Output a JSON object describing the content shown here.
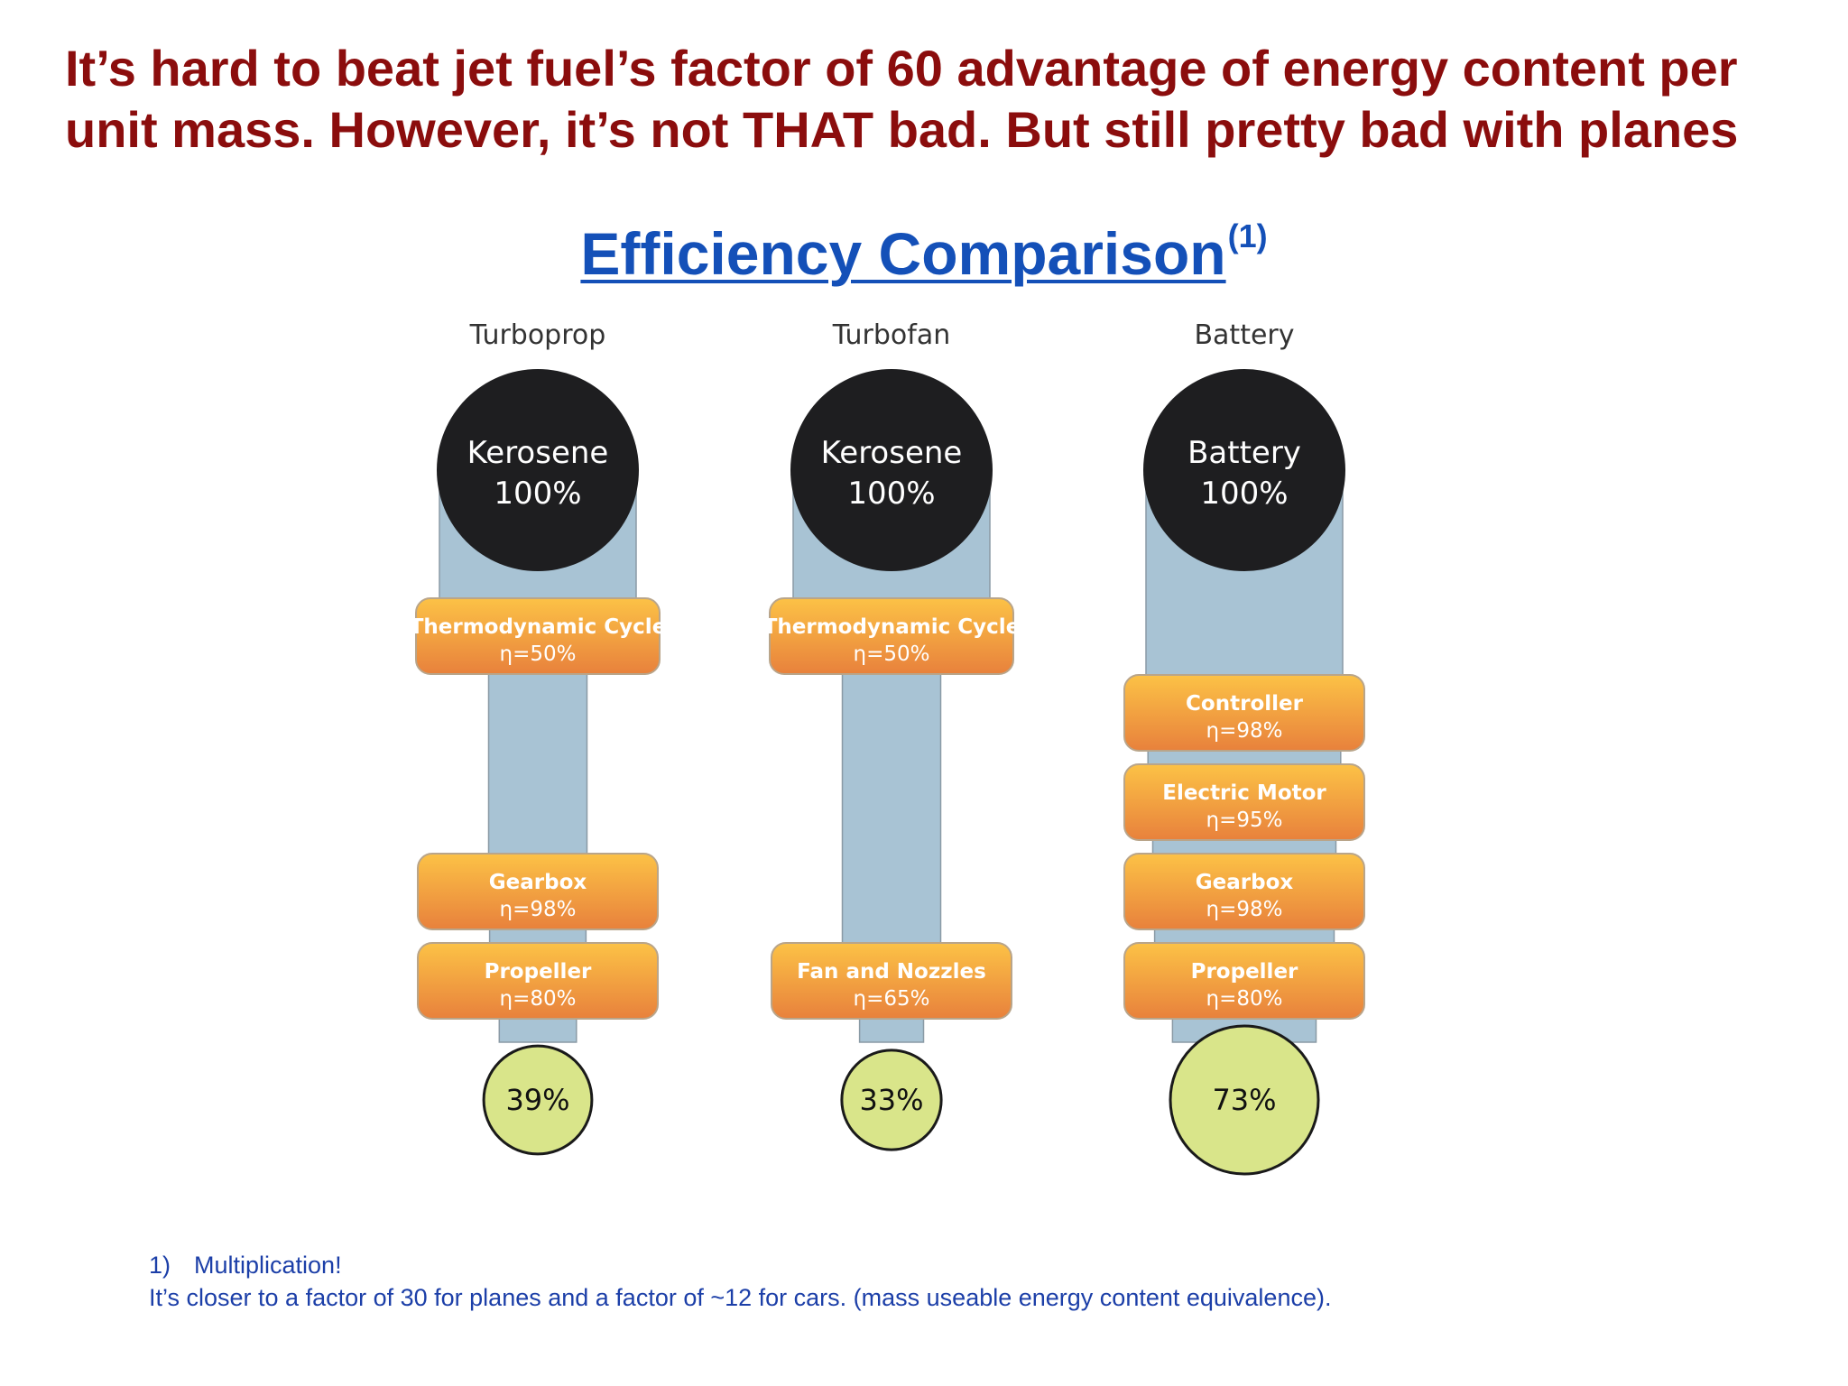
{
  "headline": {
    "line1": "It’s hard to beat jet fuel’s factor of  60 advantage of energy content per",
    "line2": "unit mass. However, it’s not THAT bad. But still pretty bad with planes"
  },
  "subtitle": {
    "text": "Efficiency Comparison",
    "superscript": "(1)"
  },
  "colors": {
    "headline": "#8b0d0d",
    "subtitle": "#1450b8",
    "flow": "#a8c3d4",
    "source_circle": "#1e1e20",
    "stage_top": "#fcc246",
    "stage_bottom": "#e8813c",
    "result_circle": "#d9e58a"
  },
  "chart_data": {
    "type": "flow",
    "columns": [
      {
        "title": "Turboprop",
        "source": {
          "name": "Kerosene",
          "value": "100%"
        },
        "stages": [
          {
            "name": "Thermodynamic Cycle",
            "efficiency": "η=50%"
          },
          {
            "name": "Gearbox",
            "efficiency": "η=98%"
          },
          {
            "name": "Propeller",
            "efficiency": "η=80%"
          }
        ],
        "result": "39%"
      },
      {
        "title": "Turbofan",
        "source": {
          "name": "Kerosene",
          "value": "100%"
        },
        "stages": [
          {
            "name": "Thermodynamic Cycle",
            "efficiency": "η=50%"
          },
          {
            "name": "Fan and Nozzles",
            "efficiency": "η=65%"
          }
        ],
        "result": "33%"
      },
      {
        "title": "Battery",
        "source": {
          "name": "Battery",
          "value": "100%"
        },
        "stages": [
          {
            "name": "Controller",
            "efficiency": "η=98%"
          },
          {
            "name": "Electric Motor",
            "efficiency": "η=95%"
          },
          {
            "name": "Gearbox",
            "efficiency": "η=98%"
          },
          {
            "name": "Propeller",
            "efficiency": "η=80%"
          }
        ],
        "result": "73%"
      }
    ]
  },
  "footnote": {
    "number": "1)",
    "line1": "Multiplication!",
    "line2": "It’s closer to a factor of 30 for planes and a factor of ~12 for cars. (mass useable energy content equivalence)."
  }
}
